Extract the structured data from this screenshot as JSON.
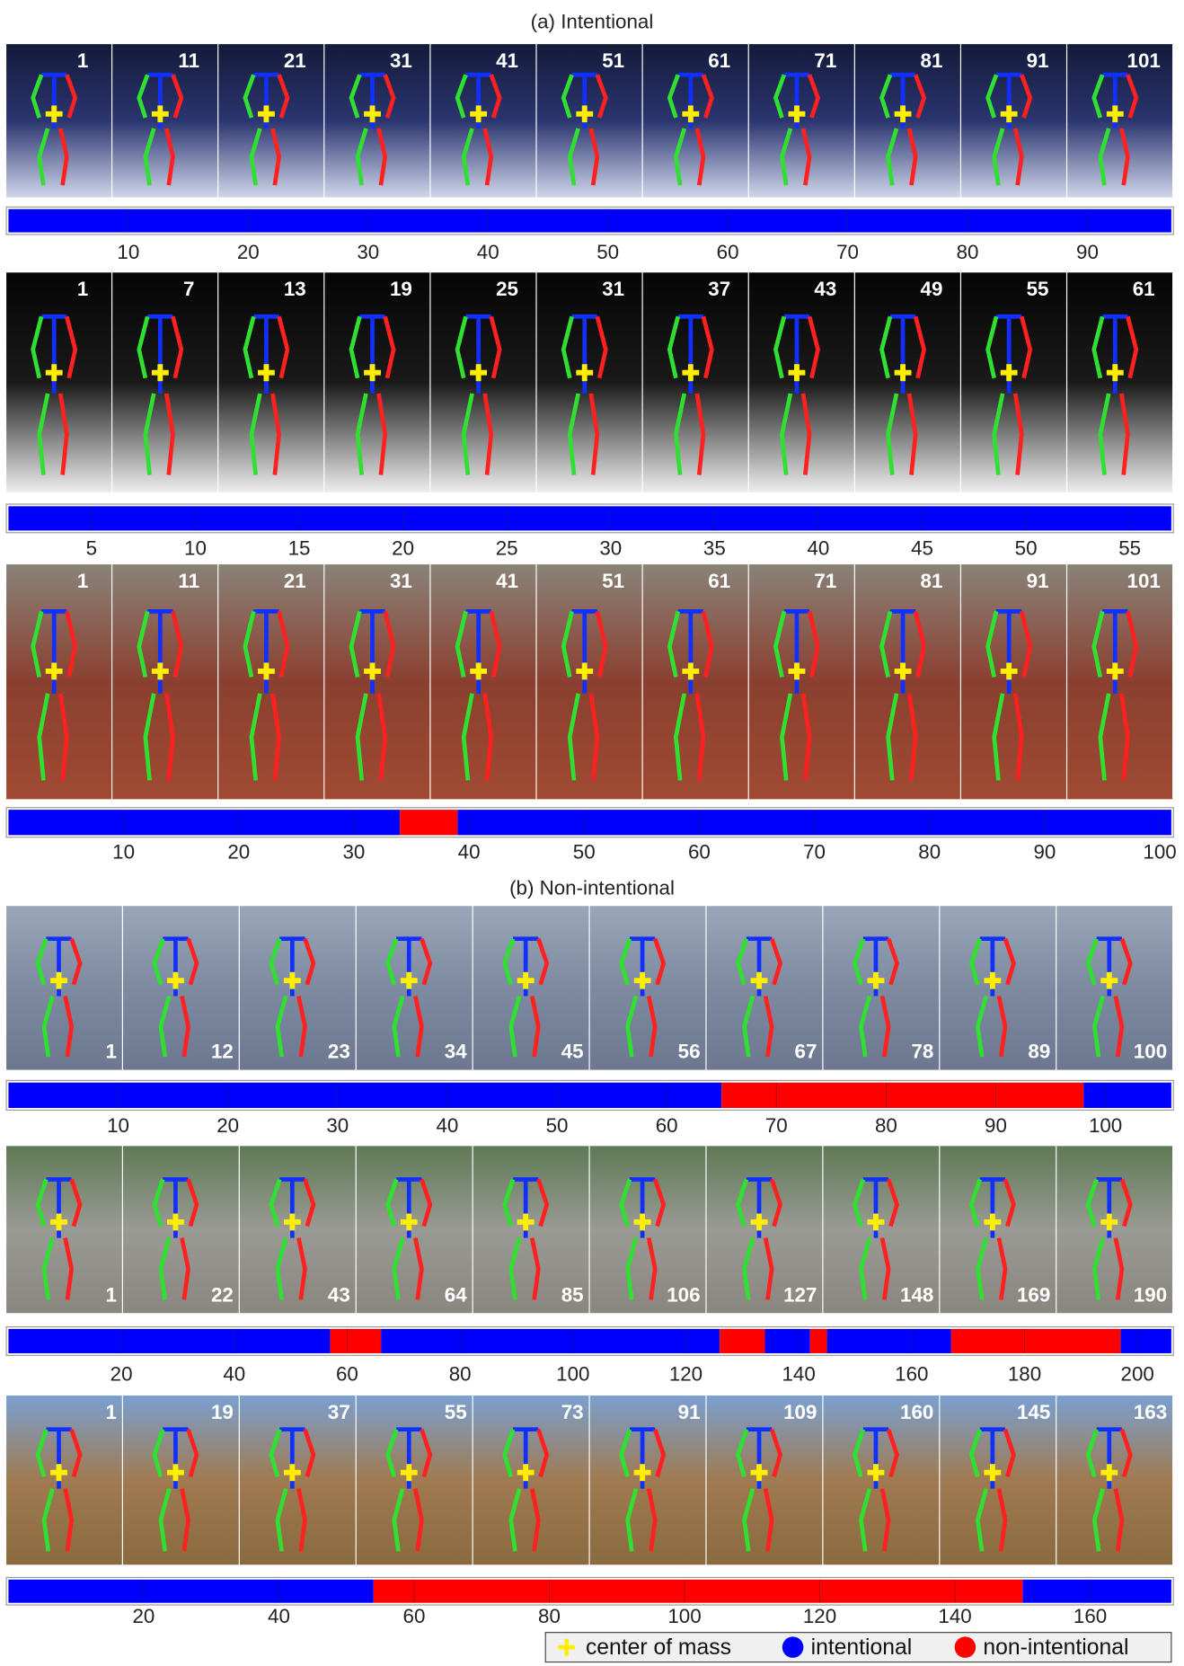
{
  "sections": [
    {
      "title": "(a) Intentional",
      "rows": [
        {
          "frames": [
            1,
            11,
            21,
            31,
            41,
            51,
            61,
            71,
            81,
            91,
            101
          ],
          "xlim": [
            0,
            97
          ],
          "ticks": [
            10,
            20,
            30,
            40,
            50,
            60,
            70,
            80,
            90
          ],
          "intentional": [
            [
              0,
              97
            ]
          ],
          "non_intentional": []
        },
        {
          "frames": [
            1,
            7,
            13,
            19,
            25,
            31,
            37,
            43,
            49,
            55,
            61
          ],
          "xlim": [
            1,
            57
          ],
          "ticks": [
            5,
            10,
            15,
            20,
            25,
            30,
            35,
            40,
            45,
            50,
            55
          ],
          "intentional": [
            [
              1,
              57
            ]
          ],
          "non_intentional": []
        },
        {
          "frames": [
            1,
            11,
            21,
            31,
            41,
            51,
            61,
            71,
            81,
            91,
            101
          ],
          "xlim": [
            0,
            101
          ],
          "ticks": [
            10,
            20,
            30,
            40,
            50,
            60,
            70,
            80,
            90,
            100
          ],
          "intentional": [
            [
              0,
              34
            ],
            [
              39,
              101
            ]
          ],
          "non_intentional": [
            [
              34,
              39
            ]
          ]
        }
      ]
    },
    {
      "title": "(b) Non-intentional",
      "rows": [
        {
          "frames": [
            1,
            12,
            23,
            34,
            45,
            56,
            67,
            78,
            89,
            100
          ],
          "xlim": [
            0,
            106
          ],
          "ticks": [
            10,
            20,
            30,
            40,
            50,
            60,
            70,
            80,
            90,
            100
          ],
          "intentional": [
            [
              0,
              65
            ],
            [
              98,
              106
            ]
          ],
          "non_intentional": [
            [
              65,
              98
            ]
          ]
        },
        {
          "frames": [
            1,
            22,
            43,
            64,
            85,
            106,
            127,
            148,
            169,
            190
          ],
          "xlim": [
            0,
            206
          ],
          "ticks": [
            20,
            40,
            60,
            80,
            100,
            120,
            140,
            160,
            180,
            200
          ],
          "intentional": [
            [
              0,
              57
            ],
            [
              66,
              126
            ],
            [
              134,
              142
            ],
            [
              145,
              167
            ],
            [
              197,
              206
            ]
          ],
          "non_intentional": [
            [
              57,
              66
            ],
            [
              126,
              134
            ],
            [
              142,
              145
            ],
            [
              167,
              197
            ]
          ]
        },
        {
          "frames": [
            1,
            19,
            37,
            55,
            73,
            91,
            109,
            160,
            145,
            163
          ],
          "xlim": [
            0,
            172
          ],
          "ticks": [
            20,
            40,
            60,
            80,
            100,
            120,
            140,
            160
          ],
          "intentional": [
            [
              0,
              54
            ],
            [
              150,
              172
            ]
          ],
          "non_intentional": [
            [
              54,
              150
            ]
          ]
        }
      ]
    }
  ],
  "legend": {
    "center_of_mass": "center of mass",
    "intentional": "intentional",
    "non_intentional": "non-intentional",
    "center_of_mass_color": "#ffee00",
    "intentional_color": "#0000ff",
    "non_intentional_color": "#ff0000"
  }
}
